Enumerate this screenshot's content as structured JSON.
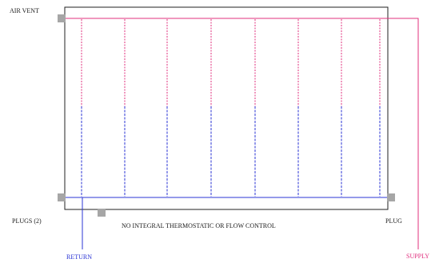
{
  "labels": {
    "air_vent": "AIR VENT",
    "plugs": "PLUGS (2)",
    "plug": "PLUG",
    "note": "NO INTEGRAL THERMOSTATIC OR FLOW CONTROL",
    "return": "RETURN",
    "supply": "SUPPLY"
  },
  "colors": {
    "supply": "#e0307e",
    "return": "#2b35d4",
    "frame": "#222222",
    "fitting": "#a6a6a6",
    "text": "#1a1a1a"
  },
  "tubes_count": 8
}
